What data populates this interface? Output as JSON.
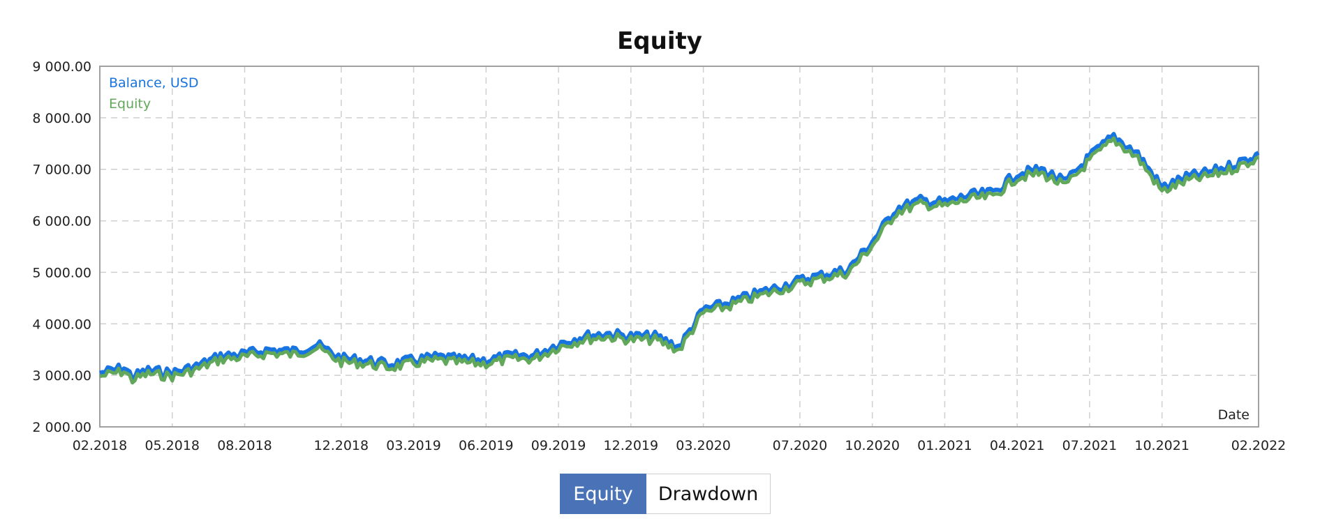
{
  "chart_data": {
    "type": "line",
    "title": "Equity",
    "xlabel": "Date",
    "ylabel": "",
    "ylim": [
      2000,
      9000
    ],
    "grid": true,
    "legend_position": "top-left",
    "x_ticks": [
      "02.2018",
      "05.2018",
      "08.2018",
      "12.2018",
      "03.2019",
      "06.2019",
      "09.2019",
      "12.2019",
      "03.2020",
      "07.2020",
      "10.2020",
      "01.2021",
      "04.2021",
      "07.2021",
      "10.2021",
      "02.2022"
    ],
    "y_ticks": [
      "2 000.00",
      "3 000.00",
      "4 000.00",
      "5 000.00",
      "6 000.00",
      "7 000.00",
      "8 000.00",
      "9 000.00"
    ],
    "y_tick_values": [
      2000,
      3000,
      4000,
      5000,
      6000,
      7000,
      8000,
      9000
    ],
    "series": [
      {
        "name": "Balance, USD",
        "color": "#1874e0",
        "points": [
          [
            "02.2018",
            3050
          ],
          [
            "2018-03",
            3150
          ],
          [
            "2018-03",
            2980
          ],
          [
            "2018-04",
            3100
          ],
          [
            "05.2018",
            3050
          ],
          [
            "2018-06",
            3180
          ],
          [
            "2018-07",
            3380
          ],
          [
            "08.2018",
            3420
          ],
          [
            "2018-09",
            3500
          ],
          [
            "2018-10",
            3470
          ],
          [
            "2018-11",
            3600
          ],
          [
            "12.2018",
            3330
          ],
          [
            "2019-01",
            3300
          ],
          [
            "2019-02",
            3220
          ],
          [
            "03.2019",
            3300
          ],
          [
            "2019-04",
            3360
          ],
          [
            "2019-05",
            3310
          ],
          [
            "06.2019",
            3300
          ],
          [
            "2019-07",
            3380
          ],
          [
            "2019-08",
            3390
          ],
          [
            "09.2019",
            3620
          ],
          [
            "2019-10",
            3760
          ],
          [
            "2019-11",
            3820
          ],
          [
            "12.2019",
            3760
          ],
          [
            "2020-01",
            3760
          ],
          [
            "2020-02",
            3560
          ],
          [
            "03.2020",
            4280
          ],
          [
            "2020-04",
            4400
          ],
          [
            "2020-05",
            4560
          ],
          [
            "07.2020",
            4850
          ],
          [
            "2020-08",
            4960
          ],
          [
            "2020-09",
            5060
          ],
          [
            "10.2020",
            5600
          ],
          [
            "2020-11",
            6250
          ],
          [
            "2020-12",
            6400
          ],
          [
            "01.2021",
            6360
          ],
          [
            "2021-02",
            6500
          ],
          [
            "2021-03",
            6550
          ],
          [
            "04.2021",
            6920
          ],
          [
            "2021-05",
            7000
          ],
          [
            "2021-06",
            6750
          ],
          [
            "07.2021",
            7250
          ],
          [
            "2021-08",
            7650
          ],
          [
            "2021-09",
            7300
          ],
          [
            "10.2021",
            6650
          ],
          [
            "2021-11",
            6850
          ],
          [
            "2021-12",
            6950
          ],
          [
            "2022-01",
            7100
          ],
          [
            "02.2022",
            7300
          ]
        ]
      },
      {
        "name": "Equity",
        "color": "#62a85a",
        "points": [
          [
            "02.2018",
            3020
          ],
          [
            "2018-03",
            3120
          ],
          [
            "2018-03",
            2950
          ],
          [
            "2018-04",
            3070
          ],
          [
            "05.2018",
            3020
          ],
          [
            "2018-06",
            3150
          ],
          [
            "2018-07",
            3350
          ],
          [
            "08.2018",
            3390
          ],
          [
            "2018-09",
            3470
          ],
          [
            "2018-10",
            3440
          ],
          [
            "2018-11",
            3570
          ],
          [
            "12.2018",
            3300
          ],
          [
            "2019-01",
            3270
          ],
          [
            "2019-02",
            3190
          ],
          [
            "03.2019",
            3270
          ],
          [
            "2019-04",
            3330
          ],
          [
            "2019-05",
            3280
          ],
          [
            "06.2019",
            3270
          ],
          [
            "2019-07",
            3350
          ],
          [
            "2019-08",
            3360
          ],
          [
            "09.2019",
            3590
          ],
          [
            "2019-10",
            3730
          ],
          [
            "2019-11",
            3790
          ],
          [
            "12.2019",
            3730
          ],
          [
            "2020-01",
            3730
          ],
          [
            "2020-02",
            3530
          ],
          [
            "03.2020",
            4250
          ],
          [
            "2020-04",
            4370
          ],
          [
            "2020-05",
            4530
          ],
          [
            "07.2020",
            4820
          ],
          [
            "2020-08",
            4930
          ],
          [
            "2020-09",
            5030
          ],
          [
            "10.2020",
            5560
          ],
          [
            "2020-11",
            6210
          ],
          [
            "2020-12",
            6360
          ],
          [
            "01.2021",
            6320
          ],
          [
            "2021-02",
            6460
          ],
          [
            "2021-03",
            6510
          ],
          [
            "04.2021",
            6880
          ],
          [
            "2021-05",
            6960
          ],
          [
            "2021-06",
            6710
          ],
          [
            "07.2021",
            7210
          ],
          [
            "2021-08",
            7610
          ],
          [
            "2021-09",
            7260
          ],
          [
            "10.2021",
            6610
          ],
          [
            "2021-11",
            6810
          ],
          [
            "2021-12",
            6910
          ],
          [
            "2022-01",
            7060
          ],
          [
            "02.2022",
            7260
          ]
        ]
      }
    ]
  },
  "tabs": {
    "equity": "Equity",
    "drawdown": "Drawdown"
  }
}
